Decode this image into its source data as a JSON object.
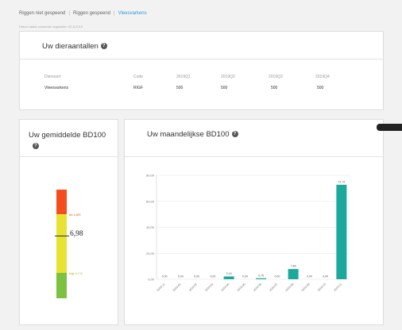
{
  "breadcrumb": {
    "items": [
      "Riggen niet gespeend",
      "Riggen gespeend",
      "Vleesvarkens"
    ]
  },
  "datestamp": "Datum laatst verwerkte registratie: 02-8-2019",
  "animals": {
    "title": "Uw dieraantallen",
    "headers": [
      "Diersoort",
      "Code",
      "2019Q1",
      "2019Q2",
      "2019Q3",
      "2019Q4"
    ],
    "rows": [
      [
        "Vleesvarkens",
        "RIGF",
        "500",
        "500",
        "500",
        "500"
      ]
    ]
  },
  "avg": {
    "title": "Uw gemiddelde BD100",
    "value": "6,98",
    "upper_label": "tot 4,8/5",
    "lower_label": "high 17,5",
    "colors": {
      "red": "#f44e1e",
      "yellow": "#e8e234",
      "green": "#7cc13f"
    }
  },
  "monthly": {
    "title": "Uw maandelijkse BD100"
  },
  "chart_data": {
    "type": "bar",
    "categories": [
      "2018-12",
      "2019-01",
      "2019-02",
      "2019-03",
      "2019-04",
      "2019-05",
      "2019-06",
      "2019-07",
      "2019-08",
      "2019-09",
      "2019-10",
      "2019-11"
    ],
    "values": [
      0.0,
      0.0,
      0.0,
      0.0,
      2.16,
      0.0,
      0.75,
      0.0,
      7.86,
      0.0,
      0.0,
      72.74
    ],
    "labels": [
      "0,00",
      "0,00",
      "0,00",
      "0,00",
      "2,16",
      "0,00",
      "0,75",
      "0,00",
      "7,86",
      "0,00",
      "0,00",
      "72,74"
    ],
    "yticks": [
      "0,00",
      "20,00",
      "40,00",
      "60,00",
      "80,00"
    ],
    "ylim": [
      0,
      80
    ],
    "color": "#1aa99a",
    "grid": true
  }
}
